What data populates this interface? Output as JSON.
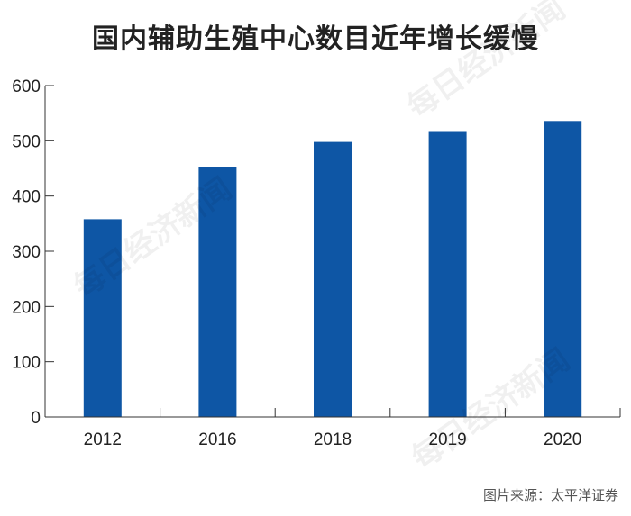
{
  "title": "国内辅助生殖中心数目近年增长缓慢",
  "source": "图片来源：太平洋证券",
  "watermark": "每日经济新闻",
  "colors": {
    "bar": "#0e56a5",
    "axis": "#333333"
  },
  "chart_data": {
    "type": "bar",
    "title": "国内辅助生殖中心数目近年增长缓慢",
    "categories": [
      "2012",
      "2016",
      "2018",
      "2019",
      "2020"
    ],
    "values": [
      358,
      452,
      498,
      516,
      536
    ],
    "ylim": [
      0,
      600
    ],
    "yticks": [
      0,
      100,
      200,
      300,
      400,
      500,
      600
    ],
    "grid": false,
    "xlabel": "",
    "ylabel": ""
  }
}
